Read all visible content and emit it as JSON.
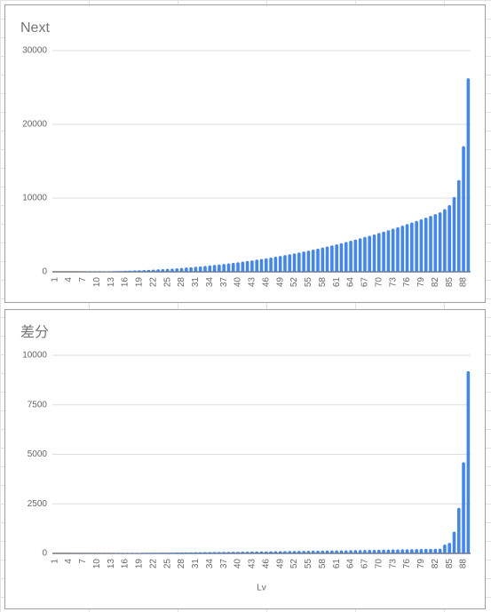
{
  "chart_data": [
    {
      "type": "bar",
      "title": "Next",
      "categories": [
        "1",
        null,
        null,
        "4",
        null,
        null,
        "7",
        null,
        null,
        "10",
        null,
        null,
        "13",
        null,
        null,
        "16",
        null,
        null,
        "19",
        null,
        null,
        "22",
        null,
        null,
        "25",
        null,
        null,
        "28",
        null,
        null,
        "31",
        null,
        null,
        "34",
        null,
        null,
        "37",
        null,
        null,
        "40",
        null,
        null,
        "43",
        null,
        null,
        "46",
        null,
        null,
        "49",
        null,
        null,
        "52",
        null,
        null,
        "55",
        null,
        null,
        "58",
        null,
        null,
        "61",
        null,
        null,
        "64",
        null,
        null,
        "67",
        null,
        null,
        "70",
        null,
        null,
        "73",
        null,
        null,
        "76",
        null,
        null,
        "79",
        null,
        null,
        "82",
        null,
        null,
        "85",
        null,
        null,
        "88",
        null
      ],
      "values": [
        0,
        1,
        2,
        4,
        7,
        11,
        17,
        23,
        31,
        41,
        52,
        64,
        78,
        94,
        112,
        132,
        153,
        177,
        202,
        230,
        260,
        292,
        326,
        363,
        402,
        443,
        487,
        533,
        582,
        634,
        688,
        744,
        804,
        866,
        931,
        999,
        1070,
        1144,
        1221,
        1300,
        1383,
        1469,
        1558,
        1650,
        1746,
        1844,
        1946,
        2051,
        2160,
        2272,
        2387,
        2506,
        2628,
        2754,
        2883,
        3016,
        3152,
        3292,
        3436,
        3583,
        3735,
        3889,
        4048,
        4211,
        4377,
        4547,
        4722,
        4900,
        5082,
        5268,
        5458,
        5652,
        5851,
        6053,
        6260,
        6470,
        6685,
        6905,
        7128,
        7356,
        7588,
        7824,
        8065,
        8515,
        9045,
        10145,
        12445,
        17045,
        26245
      ],
      "color": "#4285f4",
      "ylim": [
        0,
        30000
      ],
      "yticks": [
        0,
        10000,
        20000,
        30000
      ],
      "grid": true
    },
    {
      "type": "bar",
      "title": "差分",
      "x_label": "Lv",
      "categories": [
        "1",
        null,
        null,
        "4",
        null,
        null,
        "7",
        null,
        null,
        "10",
        null,
        null,
        "13",
        null,
        null,
        "16",
        null,
        null,
        "19",
        null,
        null,
        "22",
        null,
        null,
        "25",
        null,
        null,
        "28",
        null,
        null,
        "31",
        null,
        null,
        "34",
        null,
        null,
        "37",
        null,
        null,
        "40",
        null,
        null,
        "43",
        null,
        null,
        "46",
        null,
        null,
        "49",
        null,
        null,
        "52",
        null,
        null,
        "55",
        null,
        null,
        "58",
        null,
        null,
        "61",
        null,
        null,
        "64",
        null,
        null,
        "67",
        null,
        null,
        "70",
        null,
        null,
        "73",
        null,
        null,
        "76",
        null,
        null,
        "79",
        null,
        null,
        "82",
        null,
        null,
        "85",
        null,
        null,
        "88",
        null
      ],
      "values": [
        0,
        1,
        1,
        2,
        3,
        4,
        6,
        6,
        8,
        10,
        11,
        12,
        14,
        16,
        18,
        20,
        21,
        24,
        25,
        28,
        30,
        32,
        34,
        37,
        39,
        41,
        44,
        46,
        49,
        52,
        54,
        56,
        60,
        62,
        65,
        68,
        71,
        74,
        77,
        79,
        83,
        86,
        89,
        92,
        96,
        98,
        102,
        105,
        109,
        112,
        115,
        119,
        122,
        126,
        129,
        133,
        136,
        140,
        144,
        147,
        152,
        154,
        159,
        163,
        166,
        170,
        175,
        178,
        182,
        186,
        190,
        194,
        199,
        202,
        207,
        210,
        215,
        220,
        223,
        228,
        232,
        236,
        241,
        450,
        530,
        1100,
        2300,
        4600,
        9200
      ],
      "color": "#4285f4",
      "ylim": [
        0,
        10000
      ],
      "yticks": [
        0,
        2500,
        5000,
        7500,
        10000
      ],
      "grid": true
    }
  ]
}
